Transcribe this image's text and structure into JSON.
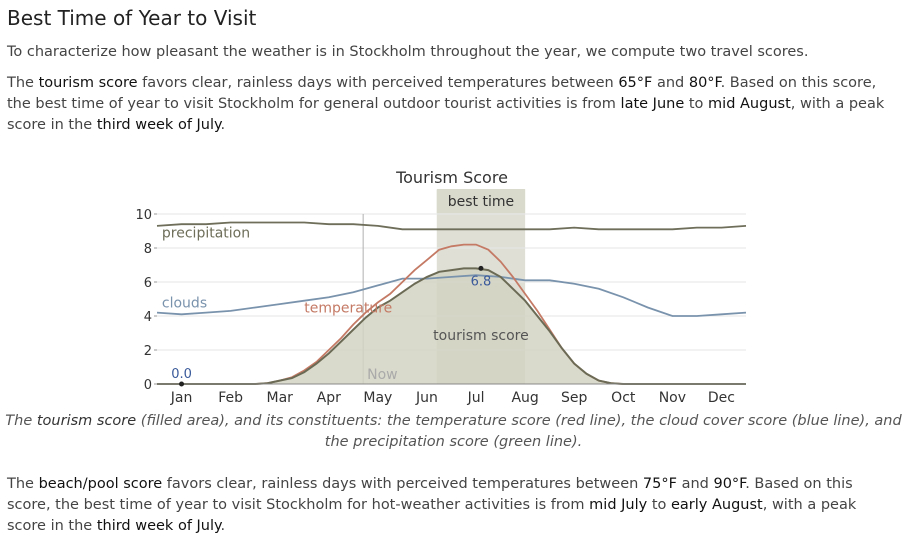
{
  "page": {
    "title": "Best Time of Year to Visit",
    "intro": "To characterize how pleasant the weather is in Stockholm throughout the year, we compute two travel scores.",
    "tourism": {
      "t1": "The ",
      "score_name": "tourism score",
      "t2": " favors clear, rainless days with perceived temperatures between ",
      "temp_low": "65°F",
      "t3": " and ",
      "temp_high": "80°F",
      "t4": ". Based on this score, the best time of year to visit Stockholm for general outdoor tourist activities is from ",
      "start": "late June",
      "t5": " to ",
      "end": "mid August",
      "t6": ", with a peak score in the ",
      "peak": "third week of July",
      "t7": "."
    },
    "caption": {
      "c1": "The ",
      "score_name": "tourism score",
      "c2": " (filled area), and its constituents: the temperature score (red line), the cloud cover score (blue line), and the precipitation score (green line)."
    },
    "beach": {
      "t1": "The ",
      "score_name": "beach/pool score",
      "t2": " favors clear, rainless days with perceived temperatures between ",
      "temp_low": "75°F",
      "t3": " and ",
      "temp_high": "90°F",
      "t4": ". Based on this score, the best time of year to visit Stockholm for hot-weather activities is from ",
      "start": "mid July",
      "t5": " to ",
      "end": "early August",
      "t6": ", with a peak score in the ",
      "peak": "third week of July",
      "t7": "."
    }
  },
  "chart_data": {
    "type": "area",
    "title": "Tourism Score",
    "x_unit": "month",
    "xlim": [
      0,
      12
    ],
    "ylim": [
      0,
      10
    ],
    "yticks": [
      0,
      2,
      4,
      6,
      8,
      10
    ],
    "month_labels": [
      "Jan",
      "Feb",
      "Mar",
      "Apr",
      "May",
      "Jun",
      "Jul",
      "Aug",
      "Sep",
      "Oct",
      "Nov",
      "Dec"
    ],
    "best_time": {
      "label": "best time",
      "start": 5.7,
      "end": 7.5
    },
    "now": {
      "label": "Now",
      "x": 4.2
    },
    "annotations": [
      {
        "label": "0.0",
        "x": 0.5,
        "y": 0.0
      },
      {
        "label": "6.8",
        "x": 6.6,
        "y": 6.8
      }
    ],
    "series": [
      {
        "name": "precipitation",
        "kind": "line",
        "color": "#6e6e5a",
        "x": [
          0,
          0.5,
          1,
          1.5,
          2,
          2.5,
          3,
          3.5,
          4,
          4.5,
          5,
          5.5,
          6,
          6.5,
          7,
          7.5,
          8,
          8.5,
          9,
          9.5,
          10,
          10.5,
          11,
          11.5,
          12
        ],
        "y": [
          9.3,
          9.4,
          9.4,
          9.5,
          9.5,
          9.5,
          9.5,
          9.4,
          9.4,
          9.3,
          9.1,
          9.1,
          9.1,
          9.1,
          9.1,
          9.1,
          9.1,
          9.2,
          9.1,
          9.1,
          9.1,
          9.1,
          9.2,
          9.2,
          9.3
        ]
      },
      {
        "name": "clouds",
        "kind": "line",
        "color": "#7a93ad",
        "x": [
          0,
          0.5,
          1,
          1.5,
          2,
          2.5,
          3,
          3.5,
          4,
          4.5,
          5,
          5.5,
          6,
          6.5,
          7,
          7.5,
          8,
          8.5,
          9,
          9.5,
          10,
          10.5,
          11,
          11.5,
          12
        ],
        "y": [
          4.2,
          4.1,
          4.2,
          4.3,
          4.5,
          4.7,
          4.9,
          5.1,
          5.4,
          5.8,
          6.2,
          6.2,
          6.3,
          6.4,
          6.3,
          6.1,
          6.1,
          5.9,
          5.6,
          5.1,
          4.5,
          4.0,
          4.0,
          4.1,
          4.2
        ]
      },
      {
        "name": "temperature",
        "kind": "line",
        "color": "#c47a65",
        "x": [
          0,
          1,
          2,
          2.25,
          2.5,
          2.75,
          3,
          3.25,
          3.5,
          3.75,
          4,
          4.25,
          4.5,
          4.75,
          5,
          5.25,
          5.5,
          5.75,
          6,
          6.25,
          6.5,
          6.75,
          7,
          7.25,
          7.5,
          7.75,
          8,
          8.25,
          8.5,
          8.75,
          9,
          9.25,
          9.5,
          9.75,
          10,
          10.5,
          11,
          12
        ],
        "y": [
          0,
          0,
          0,
          0.05,
          0.2,
          0.4,
          0.8,
          1.3,
          2.0,
          2.7,
          3.5,
          4.2,
          4.8,
          5.3,
          6.0,
          6.7,
          7.3,
          7.9,
          8.1,
          8.2,
          8.2,
          7.9,
          7.2,
          6.3,
          5.3,
          4.3,
          3.2,
          2.1,
          1.2,
          0.6,
          0.2,
          0.05,
          0,
          0,
          0,
          0,
          0,
          0
        ]
      },
      {
        "name": "tourism score",
        "kind": "area",
        "color": "#6b6b55",
        "fill": "#d3d3c3",
        "x": [
          0,
          1,
          2,
          2.25,
          2.5,
          2.75,
          3,
          3.25,
          3.5,
          3.75,
          4,
          4.25,
          4.5,
          4.75,
          5,
          5.25,
          5.5,
          5.75,
          6,
          6.25,
          6.5,
          6.75,
          7,
          7.25,
          7.5,
          7.75,
          8,
          8.25,
          8.5,
          8.75,
          9,
          9.25,
          9.5,
          9.75,
          10,
          10.5,
          11,
          12
        ],
        "y": [
          0,
          0,
          0,
          0.05,
          0.2,
          0.35,
          0.7,
          1.2,
          1.8,
          2.5,
          3.2,
          3.9,
          4.5,
          4.9,
          5.4,
          5.9,
          6.3,
          6.6,
          6.7,
          6.8,
          6.8,
          6.7,
          6.3,
          5.6,
          4.9,
          4.0,
          3.1,
          2.1,
          1.2,
          0.6,
          0.2,
          0.05,
          0,
          0,
          0,
          0,
          0,
          0
        ]
      }
    ]
  }
}
